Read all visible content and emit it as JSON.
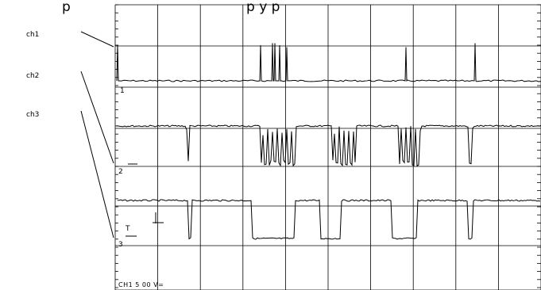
{
  "figure": {
    "header_fragment": "p",
    "header_fragment_2": "p y p"
  },
  "channels": [
    {
      "label": "ch1",
      "marker": "1"
    },
    {
      "label": "ch2",
      "marker": "2"
    },
    {
      "label": "ch3",
      "marker": "3"
    }
  ],
  "trigger_label": "T",
  "readout": "CH1 5 00 V=",
  "chart_data": {
    "type": "line",
    "grid": true,
    "xlim": [
      0,
      10
    ],
    "x_divisions": 10,
    "series": [
      {
        "name": "ch1",
        "baseline": 0,
        "spikes": [
          {
            "x": 0.05,
            "height": 0.9
          },
          {
            "x": 3.4,
            "height": 0.9
          },
          {
            "x": 3.7,
            "height": 0.95
          },
          {
            "x": 3.85,
            "height": 0.9
          },
          {
            "x": 4.0,
            "height": 0.85
          },
          {
            "x": 6.8,
            "height": 0.85
          },
          {
            "x": 8.45,
            "height": 0.95
          }
        ]
      },
      {
        "name": "ch2",
        "level": "high",
        "dips": [
          {
            "start": 1.65,
            "end": 1.75
          },
          {
            "start": 3.4,
            "end": 4.25
          },
          {
            "start": 5.1,
            "end": 5.65
          },
          {
            "start": 6.65,
            "end": 7.2
          },
          {
            "start": 8.25,
            "end": 8.4
          }
        ]
      },
      {
        "name": "ch3",
        "level": "high",
        "low_segments": [
          {
            "start": 1.7,
            "end": 1.8
          },
          {
            "start": 3.2,
            "end": 4.2
          },
          {
            "start": 4.8,
            "end": 5.3
          },
          {
            "start": 6.5,
            "end": 7.1
          },
          {
            "start": 8.3,
            "end": 8.4
          }
        ]
      }
    ]
  }
}
